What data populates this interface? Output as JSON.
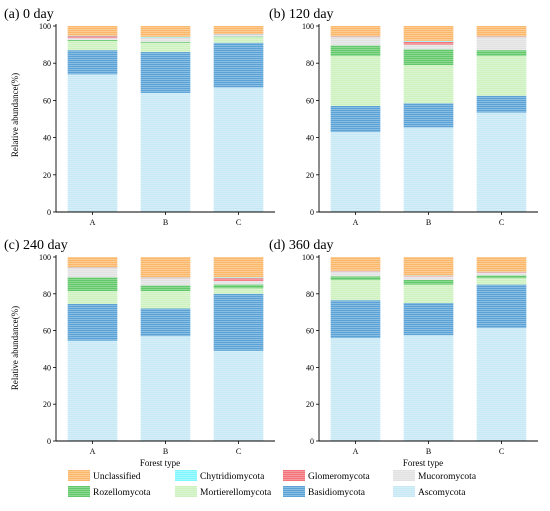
{
  "figure": {
    "xlabel_left": "Forest type",
    "xlabel_right": "Forest type",
    "ylabel_top": "Relative abundance(%)",
    "ylabel_bottom": "Relative abundance(%)"
  },
  "legend": [
    {
      "name": "Unclassified",
      "color": "#fbb86a"
    },
    {
      "name": "Chytridiomycota",
      "color": "#7ff7ff"
    },
    {
      "name": "Glomeromycota",
      "color": "#f4737a"
    },
    {
      "name": "Mucoromycota",
      "color": "#e2e2e2"
    },
    {
      "name": "Rozellomycota",
      "color": "#62c96a"
    },
    {
      "name": "Mortierellomycota",
      "color": "#cdf1bf"
    },
    {
      "name": "Basidiomycota",
      "color": "#5ba3d6"
    },
    {
      "name": "Ascomycota",
      "color": "#c7e8f5"
    }
  ],
  "chart_data": [
    {
      "type": "bar",
      "stacked": true,
      "title": "(a) 0 day",
      "categories": [
        "A",
        "B",
        "C"
      ],
      "yticks": [
        0,
        20,
        40,
        60,
        80,
        100
      ],
      "ylim": [
        0,
        100
      ],
      "series": [
        {
          "name": "Ascomycota",
          "values": [
            74,
            64,
            67
          ]
        },
        {
          "name": "Basidiomycota",
          "values": [
            13,
            22,
            24
          ]
        },
        {
          "name": "Mortierellomycota",
          "values": [
            5,
            5,
            3
          ]
        },
        {
          "name": "Rozellomycota",
          "values": [
            0.5,
            0.5,
            0.3
          ]
        },
        {
          "name": "Mucoromycota",
          "values": [
            1,
            2,
            1
          ]
        },
        {
          "name": "Glomeromycota",
          "values": [
            1,
            0.2,
            0.2
          ]
        },
        {
          "name": "Chytridiomycota",
          "values": [
            0.3,
            0.5,
            0.2
          ]
        },
        {
          "name": "Unclassified",
          "values": [
            5.2,
            5.8,
            4.3
          ]
        }
      ]
    },
    {
      "type": "bar",
      "stacked": true,
      "title": "(b) 120 day",
      "categories": [
        "A",
        "B",
        "C"
      ],
      "yticks": [
        0,
        20,
        40,
        60,
        80,
        100
      ],
      "ylim": [
        0,
        100
      ],
      "series": [
        {
          "name": "Ascomycota",
          "values": [
            43,
            45.5,
            53.5
          ]
        },
        {
          "name": "Basidiomycota",
          "values": [
            14,
            13,
            9
          ]
        },
        {
          "name": "Mortierellomycota",
          "values": [
            27,
            20.5,
            21.5
          ]
        },
        {
          "name": "Rozellomycota",
          "values": [
            5.5,
            8.5,
            3
          ]
        },
        {
          "name": "Mucoromycota",
          "values": [
            4.5,
            2.5,
            7
          ]
        },
        {
          "name": "Glomeromycota",
          "values": [
            0.3,
            1.5,
            0.3
          ]
        },
        {
          "name": "Chytridiomycota",
          "values": [
            0.2,
            0.5,
            0.2
          ]
        },
        {
          "name": "Unclassified",
          "values": [
            5.5,
            8,
            5.5
          ]
        }
      ]
    },
    {
      "type": "bar",
      "stacked": true,
      "title": "(c) 240 day",
      "categories": [
        "A",
        "B",
        "C"
      ],
      "yticks": [
        0,
        20,
        40,
        60,
        80,
        100
      ],
      "ylim": [
        0,
        100
      ],
      "series": [
        {
          "name": "Ascomycota",
          "values": [
            54.5,
            57,
            49
          ]
        },
        {
          "name": "Basidiomycota",
          "values": [
            20,
            15,
            31
          ]
        },
        {
          "name": "Mortierellomycota",
          "values": [
            7,
            9.5,
            3
          ]
        },
        {
          "name": "Rozellomycota",
          "values": [
            7.5,
            3,
            2
          ]
        },
        {
          "name": "Mucoromycota",
          "values": [
            5,
            4,
            2
          ]
        },
        {
          "name": "Glomeromycota",
          "values": [
            0.3,
            0.3,
            1.5
          ]
        },
        {
          "name": "Chytridiomycota",
          "values": [
            0.2,
            0.2,
            0.5
          ]
        },
        {
          "name": "Unclassified",
          "values": [
            5.5,
            11,
            11
          ]
        }
      ]
    },
    {
      "type": "bar",
      "stacked": true,
      "title": "(d) 360 day",
      "categories": [
        "A",
        "B",
        "C"
      ],
      "yticks": [
        0,
        20,
        40,
        60,
        80,
        100
      ],
      "ylim": [
        0,
        100
      ],
      "series": [
        {
          "name": "Ascomycota",
          "values": [
            56,
            57.5,
            61.5
          ]
        },
        {
          "name": "Basidiomycota",
          "values": [
            20.5,
            17.5,
            23.5
          ]
        },
        {
          "name": "Mortierellomycota",
          "values": [
            11,
            10,
            3.5
          ]
        },
        {
          "name": "Rozellomycota",
          "values": [
            2,
            2.5,
            1.5
          ]
        },
        {
          "name": "Mucoromycota",
          "values": [
            2.5,
            2,
            1.5
          ]
        },
        {
          "name": "Glomeromycota",
          "values": [
            0.3,
            0.3,
            0.3
          ]
        },
        {
          "name": "Chytridiomycota",
          "values": [
            0.2,
            0.2,
            0.2
          ]
        },
        {
          "name": "Unclassified",
          "values": [
            7.5,
            10,
            8
          ]
        }
      ]
    }
  ]
}
